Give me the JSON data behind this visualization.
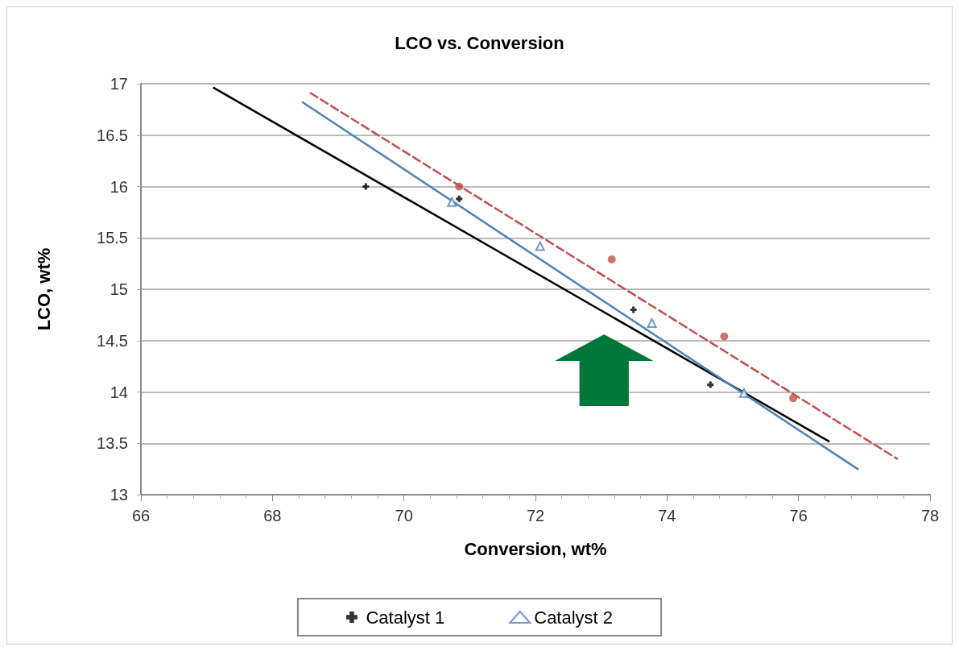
{
  "chart_data": {
    "type": "scatter",
    "title": "LCO vs. Conversion",
    "xlabel": "Conversion, wt%",
    "ylabel": "LCO, wt%",
    "xlim": [
      66,
      78
    ],
    "xticks": [
      66,
      68,
      70,
      72,
      74,
      76,
      78
    ],
    "ylim": [
      13,
      17
    ],
    "yticks": [
      13,
      13.5,
      14,
      14.5,
      15,
      15.5,
      16,
      16.5,
      17
    ],
    "grid": "y",
    "legend": "bottom",
    "series": [
      {
        "name": "Catalyst 1",
        "color": "#000000",
        "marker": "cross",
        "x": [
          69.42,
          70.84,
          73.49,
          74.66
        ],
        "values": [
          16.0,
          15.88,
          14.8,
          14.07
        ]
      },
      {
        "name": "Catalyst 2",
        "color": "#4f81bd",
        "marker": "triangle",
        "x": [
          70.73,
          72.07,
          73.77,
          75.17
        ],
        "values": [
          15.85,
          15.42,
          14.67,
          13.99
        ]
      },
      {
        "color": "#c0504d",
        "marker": "circle",
        "x": [
          70.84,
          73.16,
          74.87,
          75.92
        ],
        "values": [
          16.0,
          15.29,
          14.54,
          13.94
        ]
      },
      {
        "type": "line",
        "color": "#000000",
        "line_style": "solid",
        "x": [
          67.11,
          76.46
        ],
        "values": [
          16.96,
          13.52
        ]
      },
      {
        "type": "line",
        "color": "#4f81bd",
        "line_style": "solid",
        "x": [
          68.46,
          76.9
        ],
        "values": [
          16.82,
          13.25
        ]
      },
      {
        "type": "line",
        "color": "#c0504d",
        "line_style": "dashed",
        "x": [
          68.58,
          77.5
        ],
        "values": [
          16.91,
          13.35
        ]
      }
    ]
  }
}
